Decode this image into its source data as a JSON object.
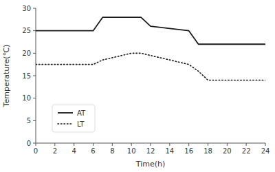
{
  "chart_data": {
    "type": "line",
    "xlabel": "Time(h)",
    "ylabel": "Temperature(℃)",
    "xlim": [
      0,
      24
    ],
    "ylim": [
      0,
      30
    ],
    "xticks": [
      0,
      2,
      4,
      6,
      8,
      10,
      12,
      14,
      16,
      18,
      20,
      22,
      24
    ],
    "yticks": [
      0,
      5,
      10,
      15,
      20,
      25,
      30
    ],
    "grid": false,
    "legend": "lower left",
    "series": [
      {
        "name": "AT",
        "color": "#1a1a1a",
        "line_style": "solid",
        "x": [
          0,
          6,
          7,
          11,
          12,
          16,
          17,
          24
        ],
        "values": [
          25,
          25,
          28,
          28,
          26,
          25,
          22,
          22
        ]
      },
      {
        "name": "LT",
        "color": "#1a1a1a",
        "line_style": "dotted",
        "x": [
          0,
          6,
          7,
          10,
          11,
          16,
          17,
          18,
          24
        ],
        "values": [
          17.5,
          17.5,
          18.5,
          20,
          20,
          17.5,
          16,
          14,
          14
        ]
      }
    ]
  }
}
